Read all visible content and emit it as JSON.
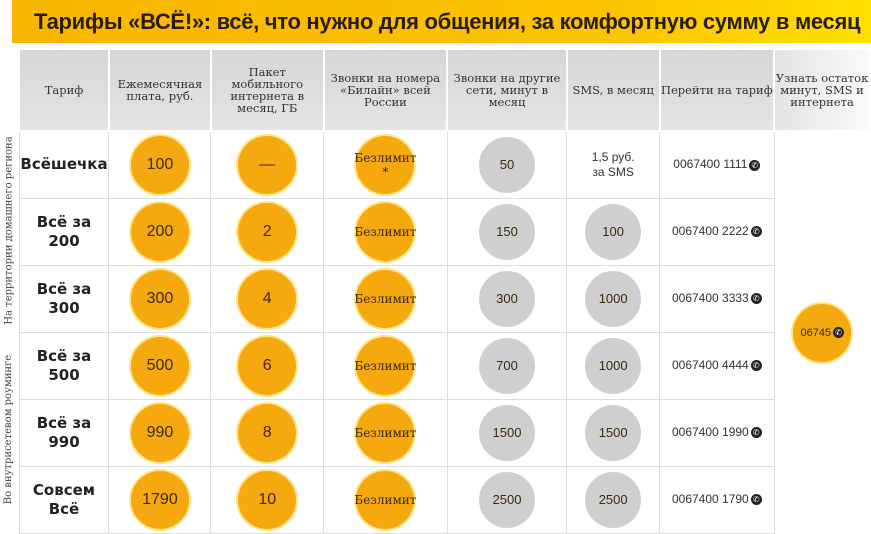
{
  "title": "Тарифы «ВСЁ!»: всё, что нужно для общения, за комфортную сумму в месяц",
  "side_labels": [
    "На территории домашнего региона",
    "Во внутрисетевом роуминге"
  ],
  "headers": [
    "Тариф",
    "Ежемесячная плата, руб.",
    "Пакет мобильного интернета в месяц, ГБ",
    "Звонки на номера «Билайн» всей России",
    "Звонки на другие сети, минут в месяц",
    "SMS, в месяц",
    "Перейти на тариф",
    "Узнать остаток минут, SMS и интернета"
  ],
  "rows": [
    {
      "name": "Всёшечка",
      "fee": "100",
      "internet": "—",
      "beeline": "Безлимит *",
      "other": "50",
      "sms": "1,5 руб. за SMS",
      "code": "0067400 1111"
    },
    {
      "name": "Всё за 200",
      "fee": "200",
      "internet": "2",
      "beeline": "Безлимит",
      "other": "150",
      "sms": "100",
      "code": "0067400 2222"
    },
    {
      "name": "Всё за 300",
      "fee": "300",
      "internet": "4",
      "beeline": "Безлимит",
      "other": "300",
      "sms": "1000",
      "code": "0067400 3333"
    },
    {
      "name": "Всё за 500",
      "fee": "500",
      "internet": "6",
      "beeline": "Безлимит",
      "other": "700",
      "sms": "1000",
      "code": "0067400 4444"
    },
    {
      "name": "Всё за 990",
      "fee": "990",
      "internet": "8",
      "beeline": "Безлимит",
      "other": "1500",
      "sms": "1500",
      "code": "0067400 1990"
    },
    {
      "name": "Совсем Всё",
      "fee": "1790",
      "internet": "10",
      "beeline": "Безлимит",
      "other": "2500",
      "sms": "2500",
      "code": "0067400 1790"
    }
  ],
  "balance_code": "06745"
}
